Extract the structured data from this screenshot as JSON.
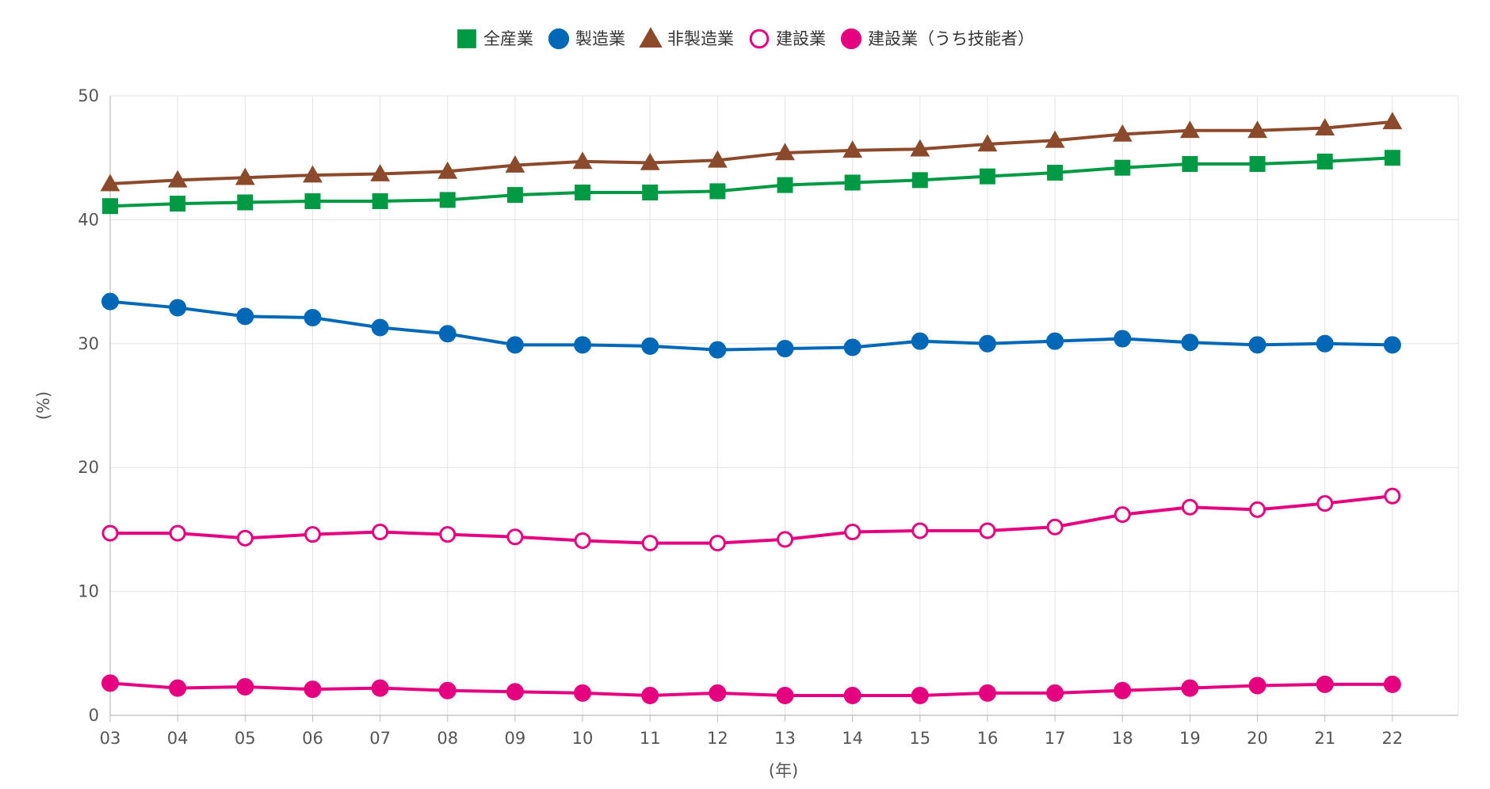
{
  "chart_data": {
    "type": "line",
    "x": [
      "03",
      "04",
      "05",
      "06",
      "07",
      "08",
      "09",
      "10",
      "11",
      "12",
      "13",
      "14",
      "15",
      "16",
      "17",
      "18",
      "19",
      "20",
      "21",
      "22"
    ],
    "xlabel": "(年)",
    "ylabel": "(%)",
    "ylim": [
      0,
      50
    ],
    "yticks": [
      0,
      10,
      20,
      30,
      40,
      50
    ],
    "grid": true,
    "legend_position": "top-center",
    "series": [
      {
        "name": "全産業",
        "marker": "square",
        "color": "#009944",
        "fill": "#009944",
        "values": [
          41.1,
          41.3,
          41.4,
          41.5,
          41.5,
          41.6,
          42.0,
          42.2,
          42.2,
          42.3,
          42.8,
          43.0,
          43.2,
          43.5,
          43.8,
          44.2,
          44.5,
          44.5,
          44.7,
          45.0
        ]
      },
      {
        "name": "製造業",
        "marker": "circle",
        "color": "#0068b7",
        "fill": "#0068b7",
        "values": [
          33.4,
          32.9,
          32.2,
          32.1,
          31.3,
          30.8,
          29.9,
          29.9,
          29.8,
          29.5,
          29.6,
          29.7,
          30.2,
          30.0,
          30.2,
          30.4,
          30.1,
          29.9,
          30.0,
          29.9
        ]
      },
      {
        "name": "非製造業",
        "marker": "triangle",
        "color": "#8b4a2b",
        "fill": "#8b4a2b",
        "values": [
          42.9,
          43.2,
          43.4,
          43.6,
          43.7,
          43.9,
          44.4,
          44.7,
          44.6,
          44.8,
          45.4,
          45.6,
          45.7,
          46.1,
          46.4,
          46.9,
          47.2,
          47.2,
          47.4,
          47.9
        ]
      },
      {
        "name": "建設業",
        "marker": "circle-open",
        "color": "#e4007f",
        "fill": "#ffffff",
        "values": [
          14.7,
          14.7,
          14.3,
          14.6,
          14.8,
          14.6,
          14.4,
          14.1,
          13.9,
          13.9,
          14.2,
          14.8,
          14.9,
          14.9,
          15.2,
          16.2,
          16.8,
          16.6,
          17.1,
          17.7
        ]
      },
      {
        "name": "建設業（うち技能者）",
        "marker": "circle",
        "color": "#e4007f",
        "fill": "#e4007f",
        "values": [
          2.6,
          2.2,
          2.3,
          2.1,
          2.2,
          2.0,
          1.9,
          1.8,
          1.6,
          1.8,
          1.6,
          1.6,
          1.6,
          1.8,
          1.8,
          2.0,
          2.2,
          2.4,
          2.5,
          2.5
        ]
      }
    ]
  }
}
